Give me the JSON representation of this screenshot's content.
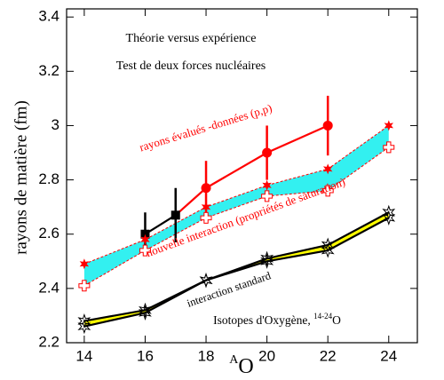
{
  "chart_data": {
    "type": "line",
    "title": "Théorie versus expérience",
    "subtitle": "Test de deux forces nucléaires",
    "x_label": {
      "sup": "A",
      "text": "O"
    },
    "y_label": "rayons de matière (fm)",
    "annotations": [
      {
        "text": "rayons évalués -données (p,p)",
        "color": "#ff0000"
      },
      {
        "text": "nouvelle interaction (propriétés de saturation)",
        "color": "#ff0000"
      },
      {
        "text": "interaction standard",
        "color": "#000000"
      },
      {
        "text": "Isotopes d'Oxygène, ",
        "sup": "14-24",
        "after": "O",
        "color": "#000000"
      }
    ],
    "xlim": [
      13.42,
      24.94
    ],
    "xticks": [
      14,
      16,
      18,
      20,
      22,
      24
    ],
    "ylim": [
      2.2,
      3.43
    ],
    "yticks": [
      2.2,
      2.4,
      2.6,
      2.8,
      3,
      3.2,
      3.4
    ],
    "series": [
      {
        "color": "#000000",
        "marker": "square",
        "x": [
          16,
          17
        ],
        "values": [
          2.6,
          2.67
        ],
        "errors": [
          0.08,
          0.1
        ],
        "line": "solid"
      },
      {
        "color": "#ff0000",
        "marker": "circle",
        "x": [
          18,
          20,
          22
        ],
        "values": [
          2.77,
          2.9,
          3.0
        ],
        "errors": [
          0.1,
          0.1,
          0.11
        ],
        "line": "solid"
      },
      {
        "color": "#ff0000",
        "marker": "star",
        "x": [
          14,
          16,
          18,
          20,
          22,
          24
        ],
        "values": [
          2.49,
          2.58,
          2.7,
          2.78,
          2.84,
          3.0
        ],
        "line": "dashed",
        "fill": "#33f0f0"
      },
      {
        "color": "#ff0000",
        "marker": "open-cross",
        "x": [
          14,
          16,
          18,
          20,
          22,
          24
        ],
        "values": [
          2.41,
          2.54,
          2.66,
          2.74,
          2.76,
          2.92
        ],
        "line": "dashed"
      },
      {
        "color": "#000000",
        "marker": "open-star",
        "x": [
          14,
          16,
          18,
          20,
          22,
          24
        ],
        "values": [
          2.28,
          2.32,
          2.43,
          2.51,
          2.56,
          2.68
        ],
        "line": "solid",
        "fill": "#ffff00"
      },
      {
        "color": "#000000",
        "marker": "open-star",
        "x": [
          14,
          16,
          18,
          20,
          22,
          24
        ],
        "values": [
          2.26,
          2.31,
          2.43,
          2.5,
          2.54,
          2.66
        ],
        "line": "solid"
      }
    ]
  }
}
